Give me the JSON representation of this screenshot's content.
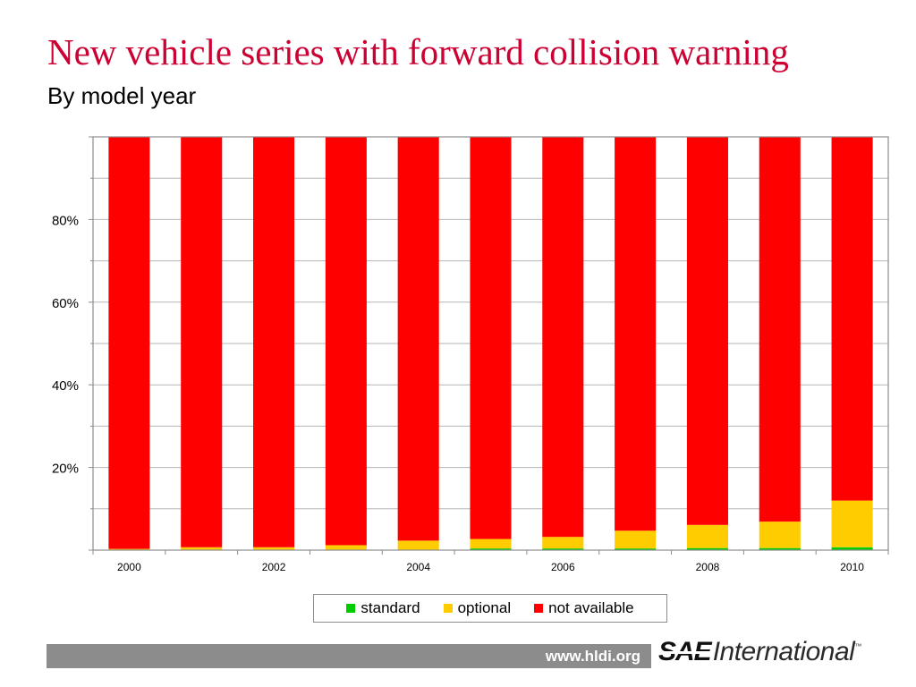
{
  "slide": {
    "title": "New vehicle series with forward collision warning",
    "subtitle": "By model year",
    "title_color": "#cc0033"
  },
  "footer": {
    "url": "www.hldi.org",
    "logo_sae": "SAE",
    "logo_international": "International",
    "logo_tm": "™"
  },
  "chart_data": {
    "type": "bar",
    "stacked": true,
    "categories": [
      "2000",
      "2001",
      "2002",
      "2003",
      "2004",
      "2005",
      "2006",
      "2007",
      "2008",
      "2009",
      "2010"
    ],
    "x_tick_labels": [
      "2000",
      "2002",
      "2004",
      "2006",
      "2008",
      "2010"
    ],
    "series": [
      {
        "name": "standard",
        "color": "#00cc00",
        "values": [
          0,
          0,
          0,
          0,
          0.1,
          0.4,
          0.4,
          0.4,
          0.5,
          0.5,
          0.7
        ]
      },
      {
        "name": "optional",
        "color": "#ffcc00",
        "values": [
          0.3,
          0.7,
          0.7,
          1.2,
          2.2,
          2.3,
          2.8,
          4.3,
          5.6,
          6.4,
          11.3
        ]
      },
      {
        "name": "not available",
        "color": "#ff0000",
        "values": [
          99.7,
          99.3,
          99.3,
          98.8,
          97.7,
          97.3,
          96.8,
          95.3,
          93.9,
          93.1,
          88.0
        ]
      }
    ],
    "ylim": [
      0,
      100
    ],
    "y_ticks": [
      0,
      20,
      40,
      60,
      80,
      100
    ],
    "y_tick_labels": [
      "20%",
      "40%",
      "60%",
      "80%"
    ],
    "grid": true,
    "legend_position": "bottom"
  }
}
